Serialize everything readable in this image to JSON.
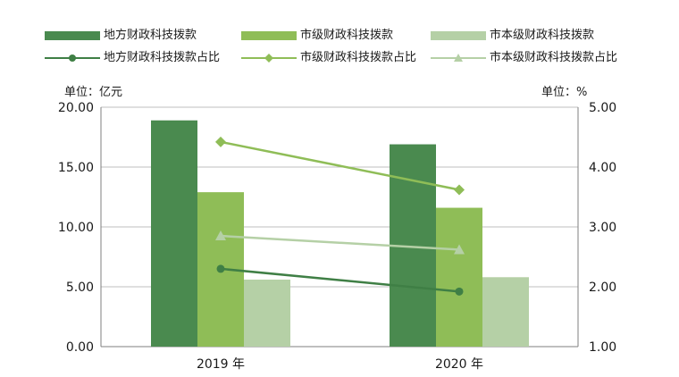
{
  "chart_data": {
    "type": "bar",
    "categories": [
      "2019 年",
      "2020 年"
    ],
    "series": [
      {
        "name": "地方财政科技拨款",
        "kind": "bar",
        "axis": "left",
        "color": "#4a8a4f",
        "values": [
          18.9,
          16.9
        ]
      },
      {
        "name": "市级财政科技拨款",
        "kind": "bar",
        "axis": "left",
        "color": "#8fbd57",
        "values": [
          12.9,
          11.6
        ]
      },
      {
        "name": "市本级财政科技拨款",
        "kind": "bar",
        "axis": "left",
        "color": "#b5d0a6",
        "values": [
          5.6,
          5.8
        ]
      },
      {
        "name": "地方财政科技拨款占比",
        "kind": "line",
        "axis": "right",
        "marker": "circle",
        "color": "#3f7f45",
        "values": [
          2.3,
          1.92
        ]
      },
      {
        "name": "市级财政科技拨款占比",
        "kind": "line",
        "axis": "right",
        "marker": "diamond",
        "color": "#8fbd57",
        "values": [
          4.42,
          3.62
        ]
      },
      {
        "name": "市本级财政科技拨款占比",
        "kind": "line",
        "axis": "right",
        "marker": "triangle",
        "color": "#b5d0a6",
        "values": [
          2.85,
          2.62
        ]
      }
    ],
    "left_axis": {
      "unit_label": "单位：亿元",
      "ylim": [
        0,
        20
      ],
      "ticks": [
        "0.00",
        "5.00",
        "10.00",
        "15.00",
        "20.00"
      ]
    },
    "right_axis": {
      "unit_label": "单位：%",
      "ylim": [
        1,
        5
      ],
      "ticks": [
        "1.00",
        "2.00",
        "3.00",
        "4.00",
        "5.00"
      ]
    },
    "grid": true,
    "legend_position": "top"
  }
}
